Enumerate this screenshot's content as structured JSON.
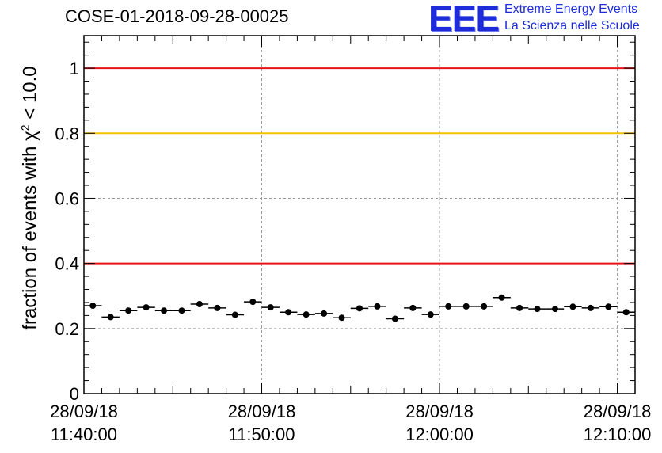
{
  "header": {
    "title": "COSE-01-2018-09-28-00025"
  },
  "logo": {
    "mark": "EEE",
    "line1": "Extreme Energy Events",
    "line2": "La Scienza nelle Scuole"
  },
  "chart_data": {
    "type": "scatter",
    "title": "COSE-01-2018-09-28-00025",
    "ylabel_prefix": "fraction of events with ",
    "ylabel_symbol": "χ",
    "ylabel_sup": "2",
    "ylabel_suffix": " < 10.0",
    "xlim_min": [
      0,
      31
    ],
    "ylim": [
      0,
      1.1
    ],
    "yticks": [
      "0",
      "0.2",
      "0.4",
      "0.6",
      "0.8",
      "1"
    ],
    "ytick_values": [
      0,
      0.2,
      0.4,
      0.6,
      0.8,
      1.0
    ],
    "xtick_minutes": [
      0,
      10,
      20,
      30
    ],
    "xtick_labels": [
      [
        "28/09/18",
        "11:40:00"
      ],
      [
        "28/09/18",
        "11:50:00"
      ],
      [
        "28/09/18",
        "12:00:00"
      ],
      [
        "28/09/18",
        "12:10:00"
      ]
    ],
    "grid": true,
    "reference_lines": [
      {
        "y": 1.0,
        "color": "#e8121a"
      },
      {
        "y": 0.8,
        "color": "#f5c400"
      },
      {
        "y": 0.4,
        "color": "#e8121a"
      }
    ],
    "bin_width_minutes": 1,
    "x_start_minutes": 0,
    "values": [
      0.27,
      0.235,
      0.255,
      0.265,
      0.255,
      0.255,
      0.275,
      0.263,
      0.242,
      0.282,
      0.265,
      0.25,
      0.243,
      0.246,
      0.233,
      0.262,
      0.268,
      0.23,
      0.263,
      0.243,
      0.268,
      0.268,
      0.268,
      0.295,
      0.263,
      0.26,
      0.26,
      0.267,
      0.263,
      0.267,
      0.25
    ]
  }
}
